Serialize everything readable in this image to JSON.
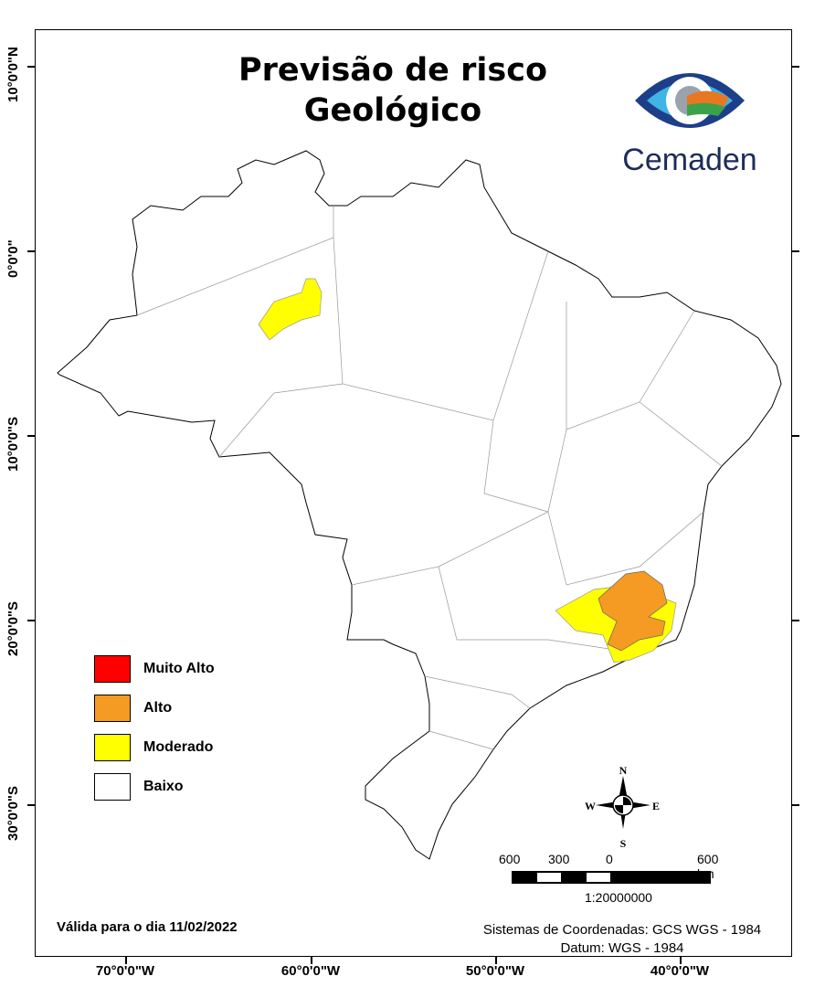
{
  "title": {
    "line1": "Previsão de risco",
    "line2": "Geológico"
  },
  "logo": {
    "text": "Cemaden"
  },
  "legend": [
    {
      "label": "Muito Alto",
      "color": "#ff0000"
    },
    {
      "label": "Alto",
      "color": "#f59a23"
    },
    {
      "label": "Moderado",
      "color": "#ffff00"
    },
    {
      "label": "Baixo",
      "color": "#ffffff"
    }
  ],
  "latitude_labels": [
    "10°0'0\"N",
    "0°0'0\"",
    "10°0'0\"S",
    "20°0'0\"S",
    "30°0'0\"S"
  ],
  "longitude_labels": [
    "70°0'0\"W",
    "60°0'0\"W",
    "50°0'0\"W",
    "40°0'0\"W"
  ],
  "compass": {
    "n": "N",
    "s": "S",
    "e": "E",
    "w": "W"
  },
  "scalebar": {
    "labels": [
      "600",
      "300",
      "0",
      "600 km"
    ],
    "ratio": "1:20000000"
  },
  "valid_date": "Válida para o dia 11/02/2022",
  "coordinate_system": "Sistemas de Coordenadas: GCS WGS - 1984",
  "datum": "Datum: WGS - 1984"
}
